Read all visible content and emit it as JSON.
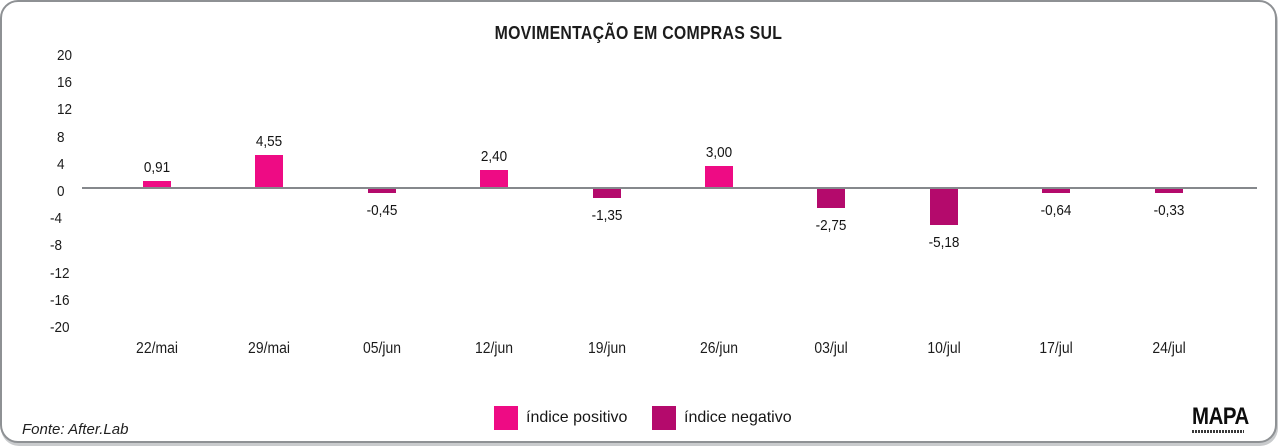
{
  "title": "MOVIMENTAÇÃO EM COMPRAS SUL",
  "chart_data": {
    "type": "bar",
    "categories": [
      "22/mai",
      "29/mai",
      "05/jun",
      "12/jun",
      "19/jun",
      "26/jun",
      "03/jul",
      "10/jul",
      "17/jul",
      "24/jul"
    ],
    "values": [
      0.91,
      4.55,
      -0.45,
      2.4,
      -1.35,
      3.0,
      -2.75,
      -5.18,
      -0.64,
      -0.33
    ],
    "value_labels": [
      "0,91",
      "4,55",
      "-0,45",
      "2,40",
      "-1,35",
      "3,00",
      "-2,75",
      "-5,18",
      "-0,64",
      "-0,33"
    ],
    "y_ticks": [
      20,
      16,
      12,
      8,
      4,
      0,
      -4,
      -8,
      -12,
      -16,
      -20
    ],
    "ylim": [
      -20,
      20
    ],
    "xlabel": "",
    "ylabel": "",
    "grid": false,
    "legend_position": "bottom",
    "series_colors": {
      "positive": "#EE0B84",
      "negative": "#B40A6C"
    }
  },
  "legend": {
    "positive_label": "índice positivo",
    "negative_label": "índice negativo"
  },
  "footer": {
    "source": "Fonte: After.Lab",
    "logo": "MAPA"
  }
}
